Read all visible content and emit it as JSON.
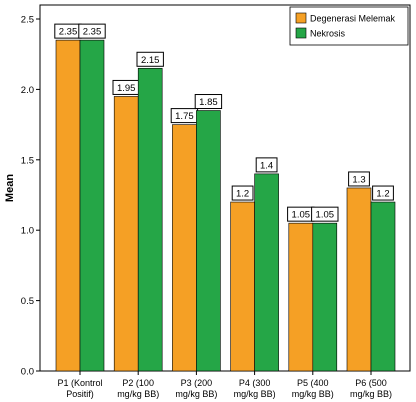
{
  "chart_data": {
    "type": "bar",
    "title": "",
    "xlabel": "",
    "ylabel": "Mean",
    "ylim": [
      0,
      2.5
    ],
    "yticks": [
      0.0,
      0.5,
      1.0,
      1.5,
      2.0,
      2.5
    ],
    "ytick_labels": [
      "0.0",
      "0.5",
      "1.0",
      "1.5",
      "2.0",
      "2.5"
    ],
    "grid": false,
    "legend_position": "top-right",
    "categories": [
      [
        "P1 (Kontrol",
        "Positif)"
      ],
      [
        "P2 (100",
        "mg/kg BB)"
      ],
      [
        "P3 (200",
        "mg/kg BB)"
      ],
      [
        "P4 (300",
        "mg/kg BB)"
      ],
      [
        "P5 (400",
        "mg/kg BB)"
      ],
      [
        "P6 (500",
        "mg/kg BB)"
      ]
    ],
    "series": [
      {
        "name": "Degenerasi Melemak",
        "color": "#f5a025",
        "values": [
          2.35,
          1.95,
          1.75,
          1.2,
          1.05,
          1.3
        ],
        "labels": [
          "2.35",
          "1.95",
          "1.75",
          "1.2",
          "1.05",
          "1.3"
        ]
      },
      {
        "name": "Nekrosis",
        "color": "#25a647",
        "values": [
          2.35,
          2.15,
          1.85,
          1.4,
          1.05,
          1.2
        ],
        "labels": [
          "2.35",
          "2.15",
          "1.85",
          "1.4",
          "1.05",
          "1.2"
        ]
      }
    ]
  }
}
